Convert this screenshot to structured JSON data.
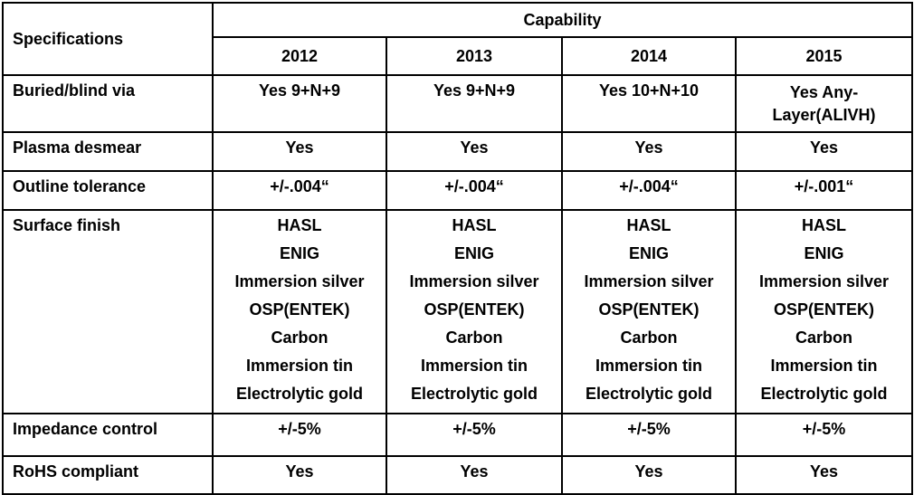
{
  "header": {
    "specifications": "Specifications",
    "capability": "Capability",
    "years": [
      "2012",
      "2013",
      "2014",
      "2015"
    ]
  },
  "rows": {
    "buried": {
      "label": "Buried/blind via",
      "values": [
        "Yes 9+N+9",
        "Yes 9+N+9",
        "Yes 10+N+10",
        "Yes Any-Layer(ALIVH)"
      ]
    },
    "plasma": {
      "label": "Plasma desmear",
      "values": [
        "Yes",
        "Yes",
        "Yes",
        "Yes"
      ]
    },
    "outline": {
      "label": "Outline tolerance",
      "values": [
        "+/-.004“",
        "+/-.004“",
        "+/-.004“",
        "+/-.001“"
      ]
    },
    "surface": {
      "label": "Surface finish",
      "items": [
        "HASL",
        "ENIG",
        "Immersion silver",
        "OSP(ENTEK)",
        "Carbon",
        "Immersion tin",
        "Electrolytic gold"
      ]
    },
    "impedance": {
      "label": "Impedance control",
      "values": [
        "+/-5%",
        "+/-5%",
        "+/-5%",
        "+/-5%"
      ]
    },
    "rohs": {
      "label": "RoHS compliant",
      "values": [
        "Yes",
        "Yes",
        "Yes",
        "Yes"
      ]
    }
  }
}
